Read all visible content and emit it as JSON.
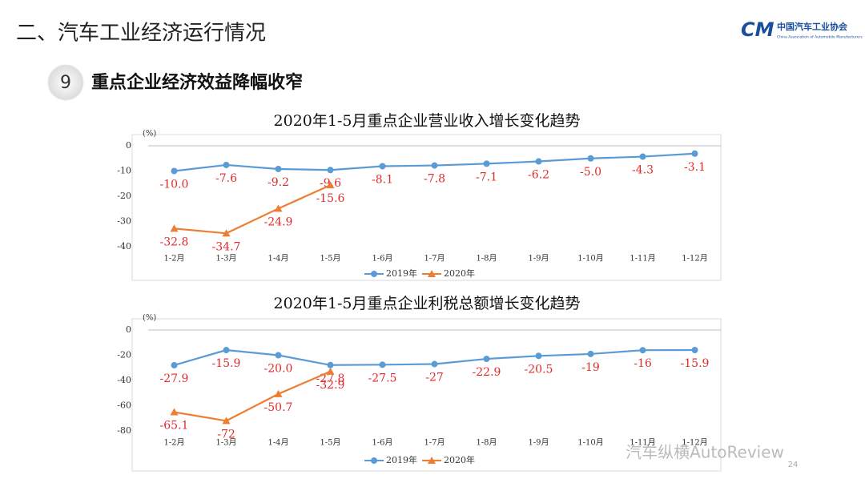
{
  "header": {
    "title": "二、汽车工业经济运行情况",
    "logo_name": "中国汽车工业协会",
    "logo_subtitle": "China Association of Automobile Manufacturers",
    "section_number": "9",
    "section_title": "重点企业经济效益降幅收窄",
    "page_number": "24",
    "watermark": "汽车纵横AutoReview"
  },
  "chart_data": [
    {
      "type": "line",
      "title": "2020年1-5月重点企业营业收入增长变化趋势",
      "y_label": "(%)",
      "categories": [
        "1-2月",
        "1-3月",
        "1-4月",
        "1-5月",
        "1-6月",
        "1-7月",
        "1-8月",
        "1-9月",
        "1-10月",
        "1-11月",
        "1-12月"
      ],
      "series": [
        {
          "name": "2019年",
          "color": "#5b9bd5",
          "marker": "circle",
          "values": [
            -10,
            -7.6,
            -9.2,
            -9.6,
            -8.1,
            -7.8,
            -7.1,
            -6.2,
            -5,
            -4.3,
            -3.1
          ],
          "value_labels": [
            "-10.0",
            "-7.6",
            "-9.2",
            "-9.6",
            "-8.1",
            "-7.8",
            "-7.1",
            "-6.2",
            "-5.0",
            "-4.3",
            "-3.1"
          ]
        },
        {
          "name": "2020年",
          "color": "#ed7d31",
          "marker": "triangle",
          "values": [
            -32.8,
            -34.7,
            -24.9,
            -15.6,
            null,
            null,
            null,
            null,
            null,
            null,
            null
          ],
          "value_labels": [
            "-32.8",
            "-34.7",
            "-24.9",
            "-15.6",
            null,
            null,
            null,
            null,
            null,
            null,
            null
          ]
        }
      ],
      "ylim": [
        -40,
        0
      ],
      "yticks": [
        -40,
        -30,
        -20,
        -10,
        0
      ],
      "label_color": "#e02b2b"
    },
    {
      "type": "line",
      "title": "2020年1-5月重点企业利税总额增长变化趋势",
      "y_label": "(%)",
      "categories": [
        "1-2月",
        "1-3月",
        "1-4月",
        "1-5月",
        "1-6月",
        "1-7月",
        "1-8月",
        "1-9月",
        "1-10月",
        "1-11月",
        "1-12月"
      ],
      "series": [
        {
          "name": "2019年",
          "color": "#5b9bd5",
          "marker": "circle",
          "values": [
            -27.9,
            -15.9,
            -20,
            -27.8,
            -27.5,
            -27,
            -22.9,
            -20.5,
            -19,
            -16,
            -15.9
          ],
          "value_labels": [
            "-27.9",
            "-15.9",
            "-20.0",
            "-27.8",
            "-27.5",
            "-27",
            "-22.9",
            "-20.5",
            "-19",
            "-16",
            "-15.9"
          ]
        },
        {
          "name": "2020年",
          "color": "#ed7d31",
          "marker": "triangle",
          "values": [
            -65.1,
            -72,
            -50.7,
            -32.9,
            null,
            null,
            null,
            null,
            null,
            null,
            null
          ],
          "value_labels": [
            "-65.1",
            "-72",
            "-50.7",
            "-32.9",
            null,
            null,
            null,
            null,
            null,
            null,
            null
          ]
        }
      ],
      "ylim": [
        -80,
        0
      ],
      "yticks": [
        -80,
        -60,
        -40,
        -20,
        0
      ],
      "label_color": "#e02b2b"
    }
  ]
}
